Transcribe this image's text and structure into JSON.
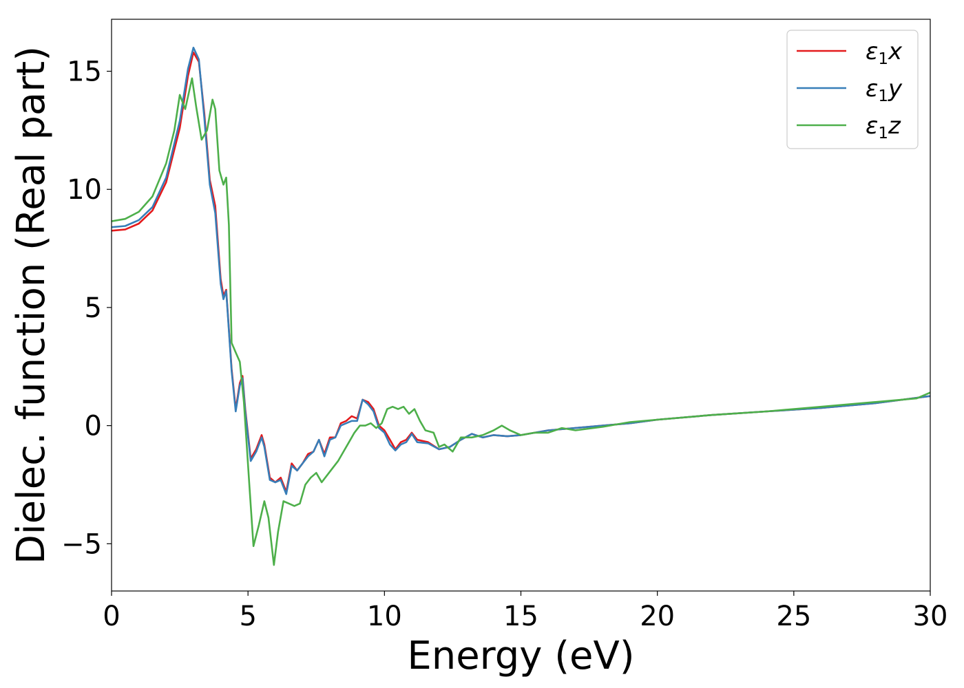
{
  "chart_data": {
    "type": "line",
    "title": "",
    "xlabel": "Energy (eV)",
    "ylabel": "Dielec. function (Real part)",
    "xlim": [
      0,
      30
    ],
    "ylim": [
      -7,
      17.2
    ],
    "xticks": [
      0,
      5,
      10,
      15,
      20,
      25,
      30
    ],
    "yticks": [
      -5,
      0,
      5,
      10,
      15
    ],
    "xtick_labels": [
      "0",
      "5",
      "10",
      "15",
      "20",
      "25",
      "30"
    ],
    "ytick_labels": [
      "−5",
      "0",
      "5",
      "10",
      "15"
    ],
    "grid": false,
    "legend_position": "top-right",
    "series": [
      {
        "name": "ε₁x",
        "legend_main": "ε",
        "legend_sub": "1",
        "legend_var": "x",
        "color": "#e41a1c",
        "points": [
          [
            0,
            8.25
          ],
          [
            0.5,
            8.3
          ],
          [
            1.0,
            8.55
          ],
          [
            1.5,
            9.1
          ],
          [
            2.0,
            10.3
          ],
          [
            2.5,
            12.6
          ],
          [
            2.8,
            14.8
          ],
          [
            3.0,
            15.8
          ],
          [
            3.2,
            15.4
          ],
          [
            3.4,
            13.2
          ],
          [
            3.6,
            10.4
          ],
          [
            3.8,
            9.3
          ],
          [
            4.0,
            6.2
          ],
          [
            4.1,
            5.5
          ],
          [
            4.2,
            5.75
          ],
          [
            4.4,
            2.4
          ],
          [
            4.55,
            0.7
          ],
          [
            4.7,
            1.8
          ],
          [
            4.8,
            2.1
          ],
          [
            4.9,
            0.7
          ],
          [
            5.1,
            -1.4
          ],
          [
            5.3,
            -1.0
          ],
          [
            5.5,
            -0.4
          ],
          [
            5.6,
            -0.8
          ],
          [
            5.8,
            -2.2
          ],
          [
            6.0,
            -2.4
          ],
          [
            6.2,
            -2.2
          ],
          [
            6.4,
            -2.8
          ],
          [
            6.6,
            -1.6
          ],
          [
            6.8,
            -1.9
          ],
          [
            7.0,
            -1.6
          ],
          [
            7.2,
            -1.2
          ],
          [
            7.4,
            -1.1
          ],
          [
            7.6,
            -0.6
          ],
          [
            7.8,
            -1.2
          ],
          [
            8.0,
            -0.5
          ],
          [
            8.2,
            -0.5
          ],
          [
            8.4,
            0.1
          ],
          [
            8.6,
            0.2
          ],
          [
            8.8,
            0.4
          ],
          [
            9.0,
            0.3
          ],
          [
            9.2,
            1.1
          ],
          [
            9.4,
            1.0
          ],
          [
            9.6,
            0.7
          ],
          [
            9.8,
            0.0
          ],
          [
            10.0,
            -0.2
          ],
          [
            10.2,
            -0.6
          ],
          [
            10.4,
            -1.0
          ],
          [
            10.6,
            -0.7
          ],
          [
            10.8,
            -0.6
          ],
          [
            11.0,
            -0.3
          ],
          [
            11.2,
            -0.6
          ],
          [
            11.6,
            -0.7
          ],
          [
            12.0,
            -1.0
          ],
          [
            12.4,
            -0.9
          ],
          [
            12.8,
            -0.6
          ],
          [
            13.2,
            -0.35
          ],
          [
            13.6,
            -0.5
          ],
          [
            14.0,
            -0.4
          ],
          [
            14.5,
            -0.45
          ],
          [
            15.0,
            -0.4
          ],
          [
            16.0,
            -0.2
          ],
          [
            17.0,
            -0.1
          ],
          [
            18.0,
            0.0
          ],
          [
            19.0,
            0.1
          ],
          [
            20.0,
            0.25
          ],
          [
            22.0,
            0.45
          ],
          [
            24.0,
            0.6
          ],
          [
            26.0,
            0.75
          ],
          [
            28.0,
            0.95
          ],
          [
            30.0,
            1.25
          ]
        ]
      },
      {
        "name": "ε₁y",
        "legend_main": "ε",
        "legend_sub": "1",
        "legend_var": "y",
        "color": "#377eb8",
        "points": [
          [
            0,
            8.4
          ],
          [
            0.5,
            8.45
          ],
          [
            1.0,
            8.7
          ],
          [
            1.5,
            9.25
          ],
          [
            2.0,
            10.5
          ],
          [
            2.5,
            12.9
          ],
          [
            2.8,
            15.1
          ],
          [
            3.0,
            16.0
          ],
          [
            3.2,
            15.5
          ],
          [
            3.4,
            13.0
          ],
          [
            3.6,
            10.2
          ],
          [
            3.8,
            9.0
          ],
          [
            4.0,
            6.0
          ],
          [
            4.1,
            5.35
          ],
          [
            4.2,
            5.7
          ],
          [
            4.4,
            2.3
          ],
          [
            4.55,
            0.6
          ],
          [
            4.7,
            1.7
          ],
          [
            4.8,
            2.0
          ],
          [
            4.9,
            0.6
          ],
          [
            5.1,
            -1.5
          ],
          [
            5.3,
            -1.1
          ],
          [
            5.5,
            -0.5
          ],
          [
            5.6,
            -0.9
          ],
          [
            5.8,
            -2.3
          ],
          [
            6.0,
            -2.4
          ],
          [
            6.2,
            -2.3
          ],
          [
            6.4,
            -2.9
          ],
          [
            6.6,
            -1.7
          ],
          [
            6.8,
            -1.9
          ],
          [
            7.0,
            -1.6
          ],
          [
            7.2,
            -1.3
          ],
          [
            7.4,
            -1.1
          ],
          [
            7.6,
            -0.6
          ],
          [
            7.8,
            -1.3
          ],
          [
            8.0,
            -0.6
          ],
          [
            8.2,
            -0.5
          ],
          [
            8.4,
            0.0
          ],
          [
            8.6,
            0.1
          ],
          [
            8.8,
            0.2
          ],
          [
            9.0,
            0.2
          ],
          [
            9.2,
            1.1
          ],
          [
            9.4,
            0.9
          ],
          [
            9.6,
            0.6
          ],
          [
            9.8,
            -0.1
          ],
          [
            10.0,
            -0.3
          ],
          [
            10.2,
            -0.8
          ],
          [
            10.4,
            -1.05
          ],
          [
            10.6,
            -0.8
          ],
          [
            10.8,
            -0.7
          ],
          [
            11.0,
            -0.35
          ],
          [
            11.2,
            -0.7
          ],
          [
            11.6,
            -0.75
          ],
          [
            12.0,
            -1.0
          ],
          [
            12.4,
            -0.9
          ],
          [
            12.8,
            -0.6
          ],
          [
            13.2,
            -0.35
          ],
          [
            13.6,
            -0.5
          ],
          [
            14.0,
            -0.4
          ],
          [
            14.5,
            -0.45
          ],
          [
            15.0,
            -0.4
          ],
          [
            16.0,
            -0.2
          ],
          [
            17.0,
            -0.1
          ],
          [
            18.0,
            0.0
          ],
          [
            19.0,
            0.1
          ],
          [
            20.0,
            0.25
          ],
          [
            22.0,
            0.45
          ],
          [
            24.0,
            0.6
          ],
          [
            26.0,
            0.75
          ],
          [
            28.0,
            0.95
          ],
          [
            30.0,
            1.25
          ]
        ]
      },
      {
        "name": "ε₁z",
        "legend_main": "ε",
        "legend_sub": "1",
        "legend_var": "z",
        "color": "#4daf4a",
        "points": [
          [
            0,
            8.65
          ],
          [
            0.5,
            8.75
          ],
          [
            1.0,
            9.05
          ],
          [
            1.5,
            9.7
          ],
          [
            2.0,
            11.1
          ],
          [
            2.3,
            12.5
          ],
          [
            2.5,
            14.0
          ],
          [
            2.7,
            13.4
          ],
          [
            2.95,
            14.7
          ],
          [
            3.1,
            13.5
          ],
          [
            3.3,
            12.1
          ],
          [
            3.5,
            12.5
          ],
          [
            3.7,
            13.8
          ],
          [
            3.8,
            13.4
          ],
          [
            3.95,
            10.8
          ],
          [
            4.1,
            10.2
          ],
          [
            4.2,
            10.5
          ],
          [
            4.3,
            8.5
          ],
          [
            4.4,
            3.5
          ],
          [
            4.55,
            3.1
          ],
          [
            4.7,
            2.7
          ],
          [
            4.85,
            1.0
          ],
          [
            5.05,
            -2.5
          ],
          [
            5.2,
            -5.1
          ],
          [
            5.4,
            -4.2
          ],
          [
            5.6,
            -3.2
          ],
          [
            5.75,
            -3.9
          ],
          [
            5.95,
            -5.9
          ],
          [
            6.1,
            -4.5
          ],
          [
            6.3,
            -3.2
          ],
          [
            6.5,
            -3.3
          ],
          [
            6.7,
            -3.4
          ],
          [
            6.9,
            -3.3
          ],
          [
            7.1,
            -2.5
          ],
          [
            7.3,
            -2.2
          ],
          [
            7.5,
            -2.0
          ],
          [
            7.7,
            -2.4
          ],
          [
            7.9,
            -2.1
          ],
          [
            8.1,
            -1.8
          ],
          [
            8.3,
            -1.5
          ],
          [
            8.5,
            -1.1
          ],
          [
            8.7,
            -0.7
          ],
          [
            8.9,
            -0.3
          ],
          [
            9.1,
            0.0
          ],
          [
            9.3,
            0.0
          ],
          [
            9.5,
            0.1
          ],
          [
            9.7,
            -0.1
          ],
          [
            9.9,
            0.1
          ],
          [
            10.1,
            0.7
          ],
          [
            10.3,
            0.8
          ],
          [
            10.5,
            0.7
          ],
          [
            10.7,
            0.8
          ],
          [
            10.9,
            0.5
          ],
          [
            11.1,
            0.7
          ],
          [
            11.3,
            0.2
          ],
          [
            11.5,
            -0.2
          ],
          [
            11.8,
            -0.3
          ],
          [
            12.0,
            -0.9
          ],
          [
            12.2,
            -0.8
          ],
          [
            12.5,
            -1.1
          ],
          [
            12.8,
            -0.5
          ],
          [
            13.2,
            -0.5
          ],
          [
            13.6,
            -0.4
          ],
          [
            14.0,
            -0.2
          ],
          [
            14.3,
            0.0
          ],
          [
            14.6,
            -0.2
          ],
          [
            15.0,
            -0.4
          ],
          [
            15.5,
            -0.3
          ],
          [
            16.0,
            -0.3
          ],
          [
            16.5,
            -0.1
          ],
          [
            17.0,
            -0.2
          ],
          [
            18.0,
            -0.05
          ],
          [
            19.0,
            0.15
          ],
          [
            20.0,
            0.25
          ],
          [
            22.0,
            0.45
          ],
          [
            24.0,
            0.6
          ],
          [
            26.0,
            0.8
          ],
          [
            28.0,
            1.0
          ],
          [
            29.5,
            1.15
          ],
          [
            30.0,
            1.4
          ]
        ]
      }
    ]
  }
}
